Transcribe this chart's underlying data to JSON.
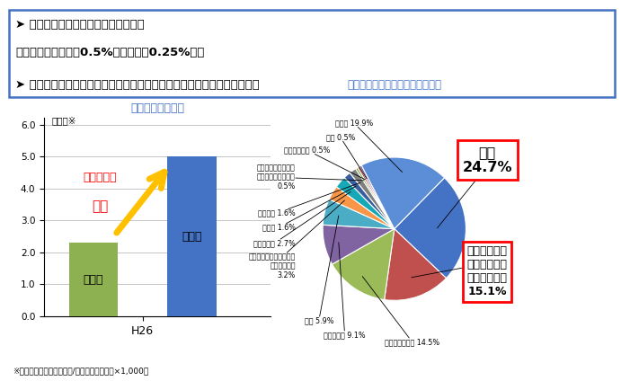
{
  "bar_title": "死傷事故率の比較",
  "pie_title": "建設業における労働災害発生要因",
  "bar_categories": [
    "全産業",
    "建設業"
  ],
  "bar_values": [
    2.3,
    5.0
  ],
  "bar_colors": [
    "#8db050",
    "#4472c4"
  ],
  "bar_xlabel": "H26",
  "bar_ylabel": "千人率※",
  "bar_ylim": [
    0,
    6.2
  ],
  "bar_yticks": [
    0.0,
    1.0,
    2.0,
    3.0,
    4.0,
    5.0,
    6.0
  ],
  "arrow_text_line1": "死傷事故率",
  "arrow_text_line2": "２倍",
  "footnote": "※千人率＝〔（年死傷者数/年平均労働者数）×1,000〕",
  "header_line1": "➤ 全産業と比べて、２倍の死傷事故率",
  "header_line2": "　（年間労働者の約0.5%（全産業約0.25%））",
  "header_line3": "➤ 事故要因としては、建設機械との接触による事故は、墜落に次いで多い",
  "pie_values": [
    24.7,
    15.1,
    14.5,
    9.1,
    5.9,
    3.2,
    2.7,
    1.6,
    1.6,
    0.5,
    0.5,
    0.5,
    19.9
  ],
  "pie_colors": [
    "#4472c4",
    "#c0504d",
    "#9bbb59",
    "#8064a2",
    "#4bacc6",
    "#f79646",
    "#17a8b8",
    "#3a5f9e",
    "#808080",
    "#6aaa3a",
    "#c04040",
    "#7050a0",
    "#5b8ed6"
  ],
  "pie_startangle": 45.54,
  "bg_color": "#ffffff",
  "title_color": "#4472c4",
  "header_border_color": "#4472c4",
  "box1_text": "墜落\n24.7%",
  "box2_text": "建設機械等の\n転倒、下敷、\n接触、衝突等\n15.1%"
}
